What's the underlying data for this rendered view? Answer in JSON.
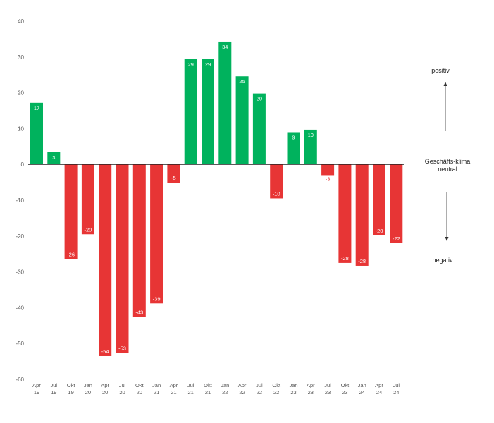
{
  "chart_data": {
    "type": "bar",
    "categories": [
      [
        "Apr",
        "19"
      ],
      [
        "Jul",
        "19"
      ],
      [
        "Okt",
        "19"
      ],
      [
        "Jan",
        "20"
      ],
      [
        "Apr",
        "20"
      ],
      [
        "Jul",
        "20"
      ],
      [
        "Okt",
        "20"
      ],
      [
        "Jan",
        "21"
      ],
      [
        "Apr",
        "21"
      ],
      [
        "Jul",
        "21"
      ],
      [
        "Okt",
        "21"
      ],
      [
        "Jan",
        "22"
      ],
      [
        "Apr",
        "22"
      ],
      [
        "Jul",
        "22"
      ],
      [
        "Okt",
        "22"
      ],
      [
        "Jan",
        "23"
      ],
      [
        "Apr",
        "23"
      ],
      [
        "Jul",
        "23"
      ],
      [
        "Okt",
        "23"
      ],
      [
        "Jan",
        "24"
      ],
      [
        "Apr",
        "24"
      ],
      [
        "Jul",
        "24"
      ]
    ],
    "values": [
      17.2,
      3.4,
      -26.4,
      -19.5,
      -53.5,
      -52.6,
      -42.6,
      -38.8,
      -5.1,
      29.4,
      29.4,
      34.3,
      24.6,
      19.8,
      -9.5,
      9.0,
      9.7,
      -3.0,
      -27.5,
      -28.3,
      -19.8,
      -22.0
    ],
    "data_labels": [
      "17",
      "3",
      "-26",
      "-20",
      "-54",
      "-53",
      "-43",
      "-39",
      "-5",
      "29",
      "29",
      "34",
      "25",
      "20",
      "-10",
      "9",
      "10",
      "-3",
      "-28",
      "-28",
      "-20",
      "-22"
    ],
    "ylim": [
      -60,
      40
    ],
    "yticks": [
      40,
      30,
      20,
      10,
      0,
      -10,
      -20,
      -30,
      -40,
      -50,
      -60
    ],
    "grid": false,
    "colors": {
      "positive": "#00b25d",
      "negative": "#e73535",
      "axis": "#222222"
    }
  },
  "annotations": {
    "positive": "positiv",
    "neutral_line1": "Geschäfts-klima",
    "neutral_line2": "neutral",
    "negative": "negativ"
  }
}
